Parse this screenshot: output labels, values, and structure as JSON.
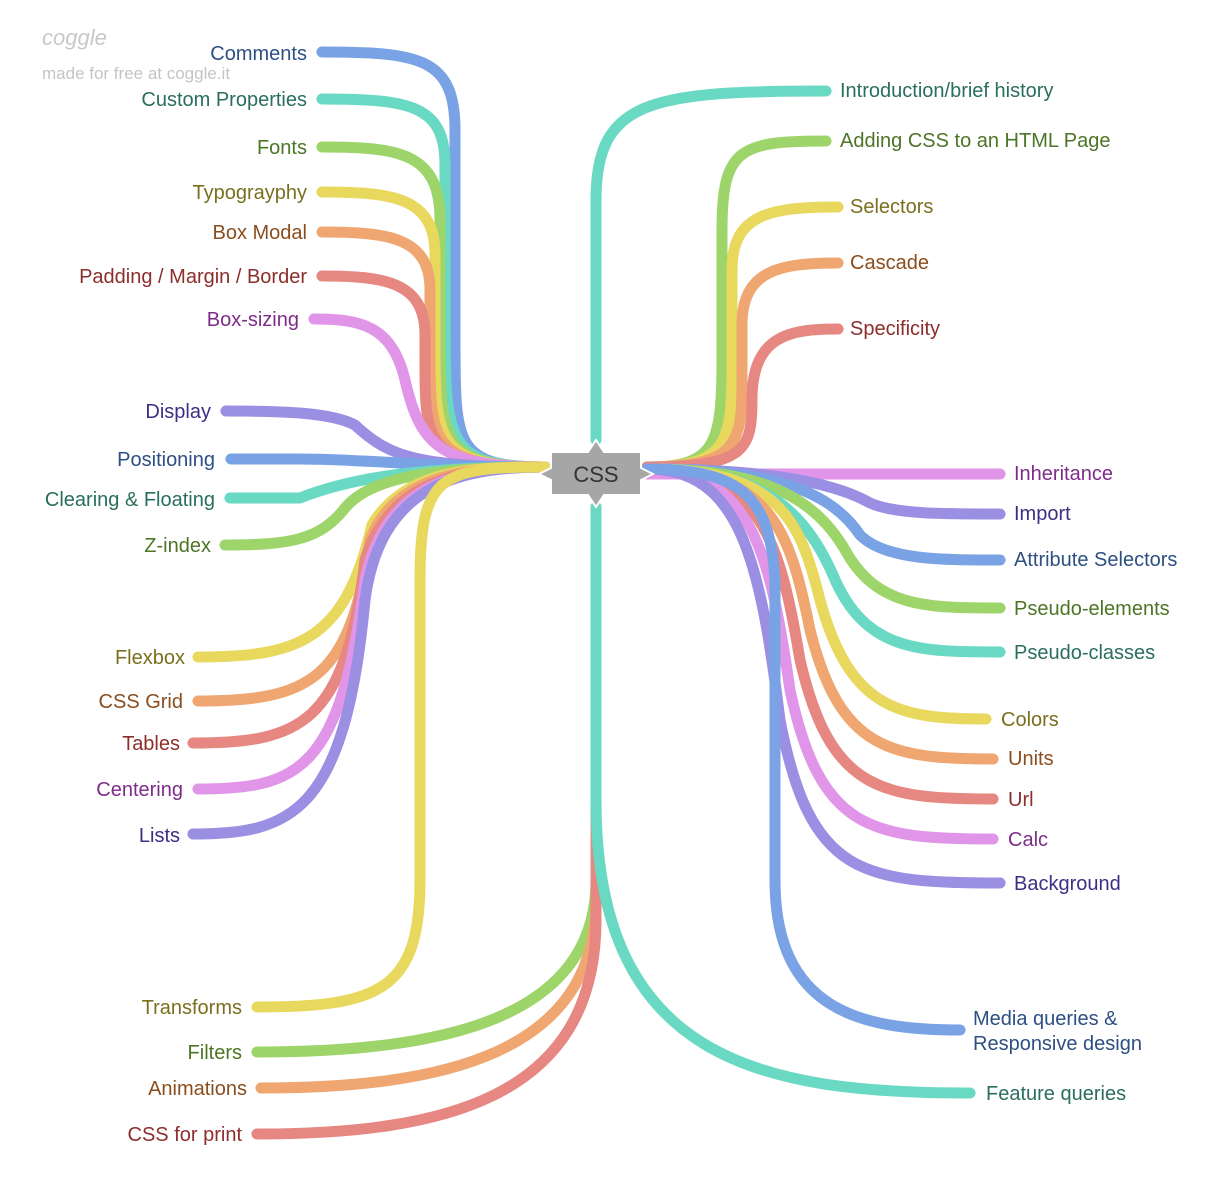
{
  "watermark": {
    "logo": "coggle",
    "tagline": "made for free at coggle.it"
  },
  "root": {
    "label": "CSS"
  },
  "colors": {
    "blue": "#7aa3e5",
    "teal": "#6ad9c4",
    "green": "#9ed56b",
    "yellow": "#e8d85e",
    "orange": "#efa670",
    "red": "#e68782",
    "pink": "#e095e8",
    "purple": "#9b8fe4"
  },
  "text_colors": {
    "blue": "#2e4f82",
    "teal": "#2a6e5e",
    "green": "#4c7526",
    "yellow": "#7a6f1f",
    "orange": "#8a4e1e",
    "red": "#8c2e2a",
    "pink": "#7e2c8a",
    "purple": "#3e2f84"
  },
  "branches": [
    {
      "label": "Comments",
      "color": "blue"
    },
    {
      "label": "Custom Properties",
      "color": "teal"
    },
    {
      "label": "Fonts",
      "color": "green"
    },
    {
      "label": "Typograyphy",
      "color": "yellow"
    },
    {
      "label": "Box Modal",
      "color": "orange"
    },
    {
      "label": "Padding / Margin / Border",
      "color": "red"
    },
    {
      "label": "Box-sizing",
      "color": "pink"
    },
    {
      "label": "Display",
      "color": "purple"
    },
    {
      "label": "Positioning",
      "color": "blue"
    },
    {
      "label": "Clearing & Floating",
      "color": "teal"
    },
    {
      "label": "Z-index",
      "color": "green"
    },
    {
      "label": "Flexbox",
      "color": "yellow"
    },
    {
      "label": "CSS Grid",
      "color": "orange"
    },
    {
      "label": "Tables",
      "color": "red"
    },
    {
      "label": "Centering",
      "color": "pink"
    },
    {
      "label": "Lists",
      "color": "purple"
    },
    {
      "label": "Transforms",
      "color": "yellow"
    },
    {
      "label": "Filters",
      "color": "green"
    },
    {
      "label": "Animations",
      "color": "orange"
    },
    {
      "label": "CSS for print",
      "color": "red"
    },
    {
      "label": "Introduction/brief history",
      "color": "teal"
    },
    {
      "label": "Adding CSS to an HTML Page",
      "color": "green"
    },
    {
      "label": "Selectors",
      "color": "yellow"
    },
    {
      "label": "Cascade",
      "color": "orange"
    },
    {
      "label": "Specificity",
      "color": "red"
    },
    {
      "label": "Inheritance",
      "color": "pink"
    },
    {
      "label": "Import",
      "color": "purple"
    },
    {
      "label": "Attribute Selectors",
      "color": "blue"
    },
    {
      "label": "Pseudo-elements",
      "color": "green"
    },
    {
      "label": "Pseudo-classes",
      "color": "teal"
    },
    {
      "label": "Colors",
      "color": "yellow"
    },
    {
      "label": "Units",
      "color": "orange"
    },
    {
      "label": "Url",
      "color": "red"
    },
    {
      "label": "Calc",
      "color": "pink"
    },
    {
      "label": "Background",
      "color": "purple"
    },
    {
      "label": "Media queries & Responsive design",
      "color": "blue"
    },
    {
      "label": "Feature queries",
      "color": "teal"
    }
  ]
}
